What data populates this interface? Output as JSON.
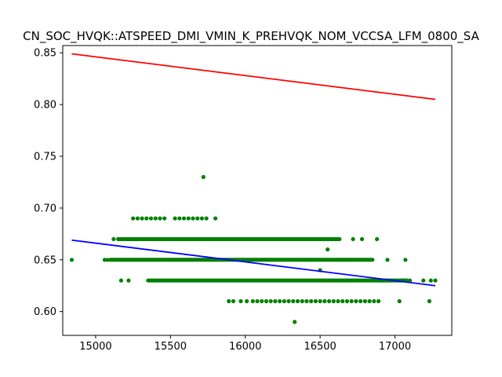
{
  "chart_data": {
    "type": "scatter",
    "title": "CN_SOC_HVQK::ATSPEED_DMI_VMIN_K_PREHVQK_NOM_VCCSA_LFM_0800_SA",
    "xlabel": "",
    "ylabel": "",
    "xlim": [
      14780,
      17380
    ],
    "ylim": [
      0.577,
      0.857
    ],
    "x_ticks": [
      15000,
      15500,
      16000,
      16500,
      17000
    ],
    "x_tick_labels": [
      "15000",
      "15500",
      "16000",
      "16500",
      "17000"
    ],
    "y_ticks": [
      0.6,
      0.65,
      0.7,
      0.75,
      0.8,
      0.85
    ],
    "y_tick_labels": [
      "0.60",
      "0.65",
      "0.70",
      "0.75",
      "0.80",
      "0.85"
    ],
    "grid": false,
    "series": [
      {
        "kind": "scatter",
        "color": "#008000",
        "points": [
          [
            14840,
            0.65
          ],
          [
            15720,
            0.73
          ],
          [
            16330,
            0.59
          ],
          [
            15060,
            0.65
          ],
          [
            15080,
            0.65
          ],
          [
            15120,
            0.67
          ],
          [
            15170,
            0.63
          ],
          [
            15220,
            0.63
          ],
          [
            15250,
            0.69
          ],
          [
            15280,
            0.69
          ],
          [
            15310,
            0.69
          ],
          [
            15340,
            0.69
          ],
          [
            15370,
            0.69
          ],
          [
            15400,
            0.69
          ],
          [
            15430,
            0.69
          ],
          [
            15460,
            0.69
          ],
          [
            15530,
            0.69
          ],
          [
            15560,
            0.69
          ],
          [
            15590,
            0.69
          ],
          [
            15620,
            0.69
          ],
          [
            15650,
            0.69
          ],
          [
            15680,
            0.69
          ],
          [
            15710,
            0.69
          ],
          [
            15740,
            0.69
          ],
          [
            15800,
            0.69
          ],
          [
            15890,
            0.61
          ],
          [
            15920,
            0.61
          ],
          [
            15970,
            0.61
          ],
          [
            16010,
            0.61
          ],
          [
            16050,
            0.61
          ],
          [
            16080,
            0.61
          ],
          [
            16110,
            0.61
          ],
          [
            16140,
            0.61
          ],
          [
            16170,
            0.61
          ],
          [
            16200,
            0.61
          ],
          [
            16230,
            0.61
          ],
          [
            16260,
            0.61
          ],
          [
            16290,
            0.61
          ],
          [
            16320,
            0.61
          ],
          [
            16350,
            0.61
          ],
          [
            16380,
            0.61
          ],
          [
            16410,
            0.61
          ],
          [
            16440,
            0.61
          ],
          [
            16470,
            0.61
          ],
          [
            16500,
            0.61
          ],
          [
            16530,
            0.61
          ],
          [
            16560,
            0.61
          ],
          [
            16590,
            0.61
          ],
          [
            16620,
            0.61
          ],
          [
            16650,
            0.61
          ],
          [
            16680,
            0.61
          ],
          [
            16710,
            0.61
          ],
          [
            16740,
            0.61
          ],
          [
            16770,
            0.61
          ],
          [
            16800,
            0.61
          ],
          [
            16830,
            0.61
          ],
          [
            16860,
            0.61
          ],
          [
            16890,
            0.61
          ],
          [
            17030,
            0.61
          ],
          [
            17230,
            0.61
          ],
          [
            16720,
            0.67
          ],
          [
            16780,
            0.67
          ],
          [
            16880,
            0.67
          ],
          [
            17070,
            0.65
          ],
          [
            16950,
            0.65
          ],
          [
            16920,
            0.63
          ],
          [
            17050,
            0.63
          ],
          [
            17100,
            0.63
          ],
          [
            17190,
            0.63
          ],
          [
            17240,
            0.63
          ],
          [
            17270,
            0.63
          ],
          [
            16550,
            0.66
          ],
          [
            16500,
            0.64
          ]
        ],
        "bands": [
          {
            "y": 0.67,
            "x_start": 15150,
            "x_end": 16630
          },
          {
            "y": 0.65,
            "x_start": 15100,
            "x_end": 16850
          },
          {
            "y": 0.63,
            "x_start": 15350,
            "x_end": 17080
          }
        ]
      },
      {
        "kind": "line",
        "color": "#ff0000",
        "x": [
          14840,
          17270
        ],
        "y": [
          0.849,
          0.805
        ]
      },
      {
        "kind": "line",
        "color": "#0000ff",
        "x": [
          14840,
          17270
        ],
        "y": [
          0.669,
          0.625
        ]
      }
    ]
  }
}
